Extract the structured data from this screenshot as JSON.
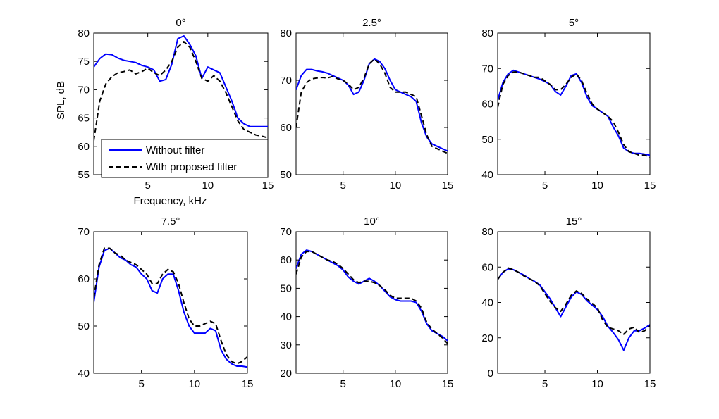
{
  "chart_data": [
    {
      "type": "line",
      "title": "0°",
      "xlabel": "Frequency, kHz",
      "ylabel": "SPL, dB",
      "xlim": [
        0.5,
        15
      ],
      "ylim": [
        55,
        80
      ],
      "xticks": [
        5,
        10,
        15
      ],
      "yticks": [
        55,
        60,
        65,
        70,
        75,
        80
      ],
      "legend": {
        "placement": "lower-left"
      },
      "series": [
        {
          "name": "Without filter",
          "color": "#0000ff",
          "style": "solid",
          "x": [
            0.5,
            1,
            1.5,
            2,
            2.5,
            3,
            3.5,
            4,
            4.5,
            5,
            5.5,
            6,
            6.5,
            7,
            7.5,
            8,
            8.5,
            9,
            9.5,
            10,
            10.5,
            11,
            11.5,
            12,
            12.5,
            13,
            13.5,
            14,
            14.5,
            15
          ],
          "y": [
            74,
            75.5,
            76.3,
            76.2,
            75.6,
            75.2,
            75,
            74.8,
            74.3,
            74,
            73.5,
            71.5,
            71.8,
            74.5,
            79,
            79.5,
            78,
            76,
            72,
            74,
            73.5,
            73,
            70.5,
            68,
            65,
            64,
            63.5,
            63.5,
            63.5,
            63.5
          ]
        },
        {
          "name": "With proposed filter",
          "color": "#000000",
          "style": "dashed",
          "x": [
            0.5,
            1,
            1.5,
            2,
            2.5,
            3,
            3.5,
            4,
            4.5,
            5,
            5.5,
            6,
            6.5,
            7,
            7.5,
            8,
            8.5,
            9,
            9.5,
            10,
            10.5,
            11,
            11.5,
            12,
            12.5,
            13,
            13.5,
            14,
            14.5,
            15
          ],
          "y": [
            61,
            68,
            71,
            72.3,
            73,
            73.2,
            73.5,
            72.8,
            73.2,
            73.8,
            73,
            72.5,
            73.5,
            75,
            77.5,
            78.5,
            77.5,
            75,
            72,
            71.5,
            72.5,
            71.5,
            69.5,
            67,
            64.5,
            63,
            62.5,
            62,
            61.8,
            61.5
          ]
        }
      ]
    },
    {
      "type": "line",
      "title": "2.5°",
      "xlabel": "",
      "ylabel": "",
      "xlim": [
        0.5,
        15
      ],
      "ylim": [
        50,
        80
      ],
      "xticks": [
        5,
        10,
        15
      ],
      "yticks": [
        50,
        60,
        70,
        80
      ],
      "series": [
        {
          "name": "Without filter",
          "color": "#0000ff",
          "style": "solid",
          "x": [
            0.5,
            1,
            1.5,
            2,
            2.5,
            3,
            3.5,
            4,
            4.5,
            5,
            5.5,
            6,
            6.5,
            7,
            7.5,
            8,
            8.5,
            9,
            9.5,
            10,
            10.5,
            11,
            11.5,
            12,
            12.5,
            13,
            13.5,
            14,
            14.5,
            15
          ],
          "y": [
            68,
            71,
            72.3,
            72.3,
            72,
            71.8,
            71.5,
            71,
            70.5,
            70,
            69,
            67,
            67.5,
            70,
            73.5,
            74.5,
            74,
            72.5,
            70,
            68,
            67.5,
            67,
            66.5,
            65.5,
            61,
            58,
            56.5,
            56,
            55.5,
            55
          ]
        },
        {
          "name": "With proposed filter",
          "color": "#000000",
          "style": "dashed",
          "x": [
            0.5,
            1,
            1.5,
            2,
            2.5,
            3,
            3.5,
            4,
            4.5,
            5,
            5.5,
            6,
            6.5,
            7,
            7.5,
            8,
            8.5,
            9,
            9.5,
            10,
            10.5,
            11,
            11.5,
            12,
            12.5,
            13,
            13.5,
            14,
            14.5,
            15
          ],
          "y": [
            60,
            67.5,
            69.5,
            70.3,
            70.5,
            70.6,
            70.5,
            70.8,
            70.3,
            70,
            69.2,
            68,
            68.5,
            70.5,
            73.5,
            74.5,
            73.5,
            71.5,
            68.5,
            67.5,
            67.5,
            67.5,
            67,
            66.5,
            62.5,
            58.5,
            56,
            55.5,
            55,
            54.5
          ]
        }
      ]
    },
    {
      "type": "line",
      "title": "5°",
      "xlabel": "",
      "ylabel": "",
      "xlim": [
        0.5,
        15
      ],
      "ylim": [
        40,
        80
      ],
      "xticks": [
        5,
        10,
        15
      ],
      "yticks": [
        40,
        50,
        60,
        70,
        80
      ],
      "series": [
        {
          "name": "Without filter",
          "color": "#0000ff",
          "style": "solid",
          "x": [
            0.5,
            1,
            1.5,
            2,
            2.5,
            3,
            3.5,
            4,
            4.5,
            5,
            5.5,
            6,
            6.5,
            7,
            7.5,
            8,
            8.5,
            9,
            9.5,
            10,
            10.5,
            11,
            11.5,
            12,
            12.5,
            13,
            13.5,
            14,
            14.5,
            15
          ],
          "y": [
            61,
            66,
            68.5,
            69.5,
            69,
            68.5,
            68,
            67.5,
            67,
            66.3,
            65.5,
            63.5,
            62.5,
            65,
            68,
            68.5,
            66,
            62,
            59.5,
            58.5,
            57.5,
            56.5,
            53.5,
            51,
            47.5,
            46.5,
            46,
            46,
            45.8,
            45.5
          ]
        },
        {
          "name": "With proposed filter",
          "color": "#000000",
          "style": "dashed",
          "x": [
            0.5,
            1,
            1.5,
            2,
            2.5,
            3,
            3.5,
            4,
            4.5,
            5,
            5.5,
            6,
            6.5,
            7,
            7.5,
            8,
            8.5,
            9,
            9.5,
            10,
            10.5,
            11,
            11.5,
            12,
            12.5,
            13,
            13.5,
            14,
            14.5,
            15
          ],
          "y": [
            59,
            65.5,
            68,
            69,
            69,
            68.5,
            68,
            67.5,
            67.5,
            66.5,
            65.5,
            64,
            64,
            65.5,
            67.5,
            68.5,
            66.5,
            63,
            60,
            58.5,
            57.5,
            56.5,
            55,
            52,
            48.5,
            46.5,
            46,
            45.5,
            45.5,
            45
          ]
        }
      ]
    },
    {
      "type": "line",
      "title": "7.5°",
      "xlabel": "",
      "ylabel": "",
      "xlim": [
        0.5,
        15
      ],
      "ylim": [
        40,
        70
      ],
      "xticks": [
        5,
        10,
        15
      ],
      "yticks": [
        40,
        50,
        60,
        70
      ],
      "series": [
        {
          "name": "Without filter",
          "color": "#0000ff",
          "style": "solid",
          "x": [
            0.5,
            1,
            1.5,
            2,
            2.5,
            3,
            3.5,
            4,
            4.5,
            5,
            5.5,
            6,
            6.5,
            7,
            7.5,
            8,
            8.5,
            9,
            9.5,
            10,
            10.5,
            11,
            11.5,
            12,
            12.5,
            13,
            13.5,
            14,
            14.5,
            15
          ],
          "y": [
            55,
            62.5,
            66,
            66.5,
            65.5,
            64.5,
            64,
            63,
            62.5,
            61,
            60,
            57.5,
            57,
            60,
            61,
            61,
            57.5,
            53,
            50,
            48.5,
            48.5,
            48.5,
            49.5,
            49,
            45,
            43,
            42,
            41.5,
            41.5,
            41.3
          ]
        },
        {
          "name": "With proposed filter",
          "color": "#000000",
          "style": "dashed",
          "x": [
            0.5,
            1,
            1.5,
            2,
            2.5,
            3,
            3.5,
            4,
            4.5,
            5,
            5.5,
            6,
            6.5,
            7,
            7.5,
            8,
            8.5,
            9,
            9.5,
            10,
            10.5,
            11,
            11.5,
            12,
            12.5,
            13,
            13.5,
            14,
            14.5,
            15
          ],
          "y": [
            56,
            63,
            66.5,
            66.5,
            65.5,
            65,
            64,
            63.5,
            63,
            62,
            61,
            59,
            59,
            61,
            62,
            61.5,
            59,
            55,
            51.5,
            50,
            50,
            50.5,
            51,
            50.5,
            47,
            44,
            42.5,
            42,
            42.5,
            43.5
          ]
        }
      ]
    },
    {
      "type": "line",
      "title": "10°",
      "xlabel": "",
      "ylabel": "",
      "xlim": [
        0.5,
        15
      ],
      "ylim": [
        20,
        70
      ],
      "xticks": [
        5,
        10,
        15
      ],
      "yticks": [
        20,
        30,
        40,
        50,
        60,
        70
      ],
      "series": [
        {
          "name": "Without filter",
          "color": "#0000ff",
          "style": "solid",
          "x": [
            0.5,
            1,
            1.5,
            2,
            2.5,
            3,
            3.5,
            4,
            4.5,
            5,
            5.5,
            6,
            6.5,
            7,
            7.5,
            8,
            8.5,
            9,
            9.5,
            10,
            10.5,
            11,
            11.5,
            12,
            12.5,
            13,
            13.5,
            14,
            14.5,
            15
          ],
          "y": [
            57,
            62,
            63.5,
            63,
            62,
            61,
            60,
            59,
            58,
            56.5,
            54,
            52.5,
            51.5,
            52.5,
            53.5,
            52.5,
            51,
            49,
            47,
            46,
            45.5,
            45.5,
            45.5,
            45,
            42,
            37.5,
            35,
            34,
            33,
            31.5
          ]
        },
        {
          "name": "With proposed filter",
          "color": "#000000",
          "style": "dashed",
          "x": [
            0.5,
            1,
            1.5,
            2,
            2.5,
            3,
            3.5,
            4,
            4.5,
            5,
            5.5,
            6,
            6.5,
            7,
            7.5,
            8,
            8.5,
            9,
            9.5,
            10,
            10.5,
            11,
            11.5,
            12,
            12.5,
            13,
            13.5,
            14,
            14.5,
            15
          ],
          "y": [
            55,
            61,
            63,
            63,
            62,
            61,
            60,
            59.5,
            58.5,
            57,
            55,
            53,
            52,
            52.5,
            52.5,
            52,
            51,
            49.5,
            47.5,
            46.5,
            46.5,
            46.5,
            46.5,
            45.5,
            43,
            38,
            35.5,
            34,
            32.5,
            30.5
          ]
        }
      ]
    },
    {
      "type": "line",
      "title": "15°",
      "xlabel": "",
      "ylabel": "",
      "xlim": [
        0.5,
        15
      ],
      "ylim": [
        0,
        80
      ],
      "xticks": [
        5,
        10,
        15
      ],
      "yticks": [
        0,
        20,
        40,
        60,
        80
      ],
      "series": [
        {
          "name": "Without filter",
          "color": "#0000ff",
          "style": "solid",
          "x": [
            0.5,
            1,
            1.5,
            2,
            2.5,
            3,
            3.5,
            4,
            4.5,
            5,
            5.5,
            6,
            6.5,
            7,
            7.5,
            8,
            8.5,
            9,
            9.5,
            10,
            10.5,
            11,
            11.5,
            12,
            12.5,
            13,
            13.5,
            14,
            14.5,
            15
          ],
          "y": [
            53,
            57,
            59,
            58.5,
            57,
            55.5,
            53.5,
            52,
            50,
            46,
            42,
            37,
            32,
            37.5,
            43,
            46,
            44.5,
            41,
            38.5,
            36,
            32,
            26.5,
            23,
            19,
            13,
            20,
            24,
            24,
            25.5,
            27.5
          ]
        },
        {
          "name": "With proposed filter",
          "color": "#000000",
          "style": "dashed",
          "x": [
            0.5,
            1,
            1.5,
            2,
            2.5,
            3,
            3.5,
            4,
            4.5,
            5,
            5.5,
            6,
            6.5,
            7,
            7.5,
            8,
            8.5,
            9,
            9.5,
            10,
            10.5,
            11,
            11.5,
            12,
            12.5,
            13,
            13.5,
            14,
            14.5,
            15
          ],
          "y": [
            53,
            57,
            59.5,
            58.5,
            57,
            55,
            53.5,
            52,
            49.5,
            45,
            40.5,
            37,
            35,
            39,
            44,
            46.5,
            45,
            42,
            39.5,
            37,
            30,
            26,
            25,
            24,
            22,
            25,
            26,
            23,
            24,
            27
          ]
        }
      ]
    }
  ]
}
